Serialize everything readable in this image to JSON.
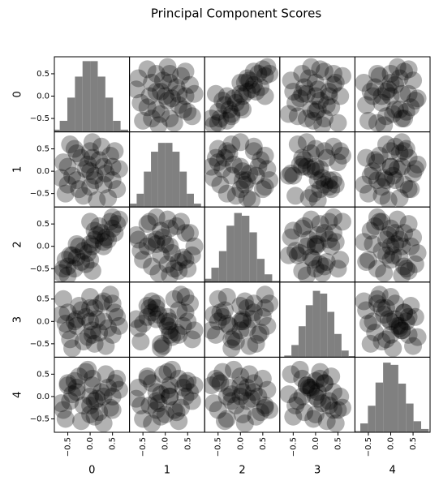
{
  "chart_data": {
    "type": "scatter_matrix",
    "title": "Principal Component Scores",
    "variables": [
      "0",
      "1",
      "2",
      "3",
      "4"
    ],
    "lim": [
      -0.8,
      0.88
    ],
    "ticks": [
      {
        "value": -0.5,
        "label": "−0.5"
      },
      {
        "value": 0,
        "label": "0.0"
      },
      0.5
    ],
    "color": "#000000",
    "hist_color": "#808080",
    "hist_ylim": [
      0,
      1300
    ],
    "histograms": [
      {
        "bins": [
          -0.85,
          -0.68,
          -0.51,
          -0.34,
          -0.17,
          0,
          0.17,
          0.34,
          0.51,
          0.68,
          0.85
        ],
        "counts": [
          40,
          200,
          620,
          1000,
          1280,
          1280,
          1000,
          620,
          200,
          40
        ]
      },
      {
        "bins": [
          -0.8,
          -0.64,
          -0.48,
          -0.32,
          -0.16,
          0,
          0.16,
          0.32,
          0.48,
          0.64,
          0.8
        ],
        "counts": [
          60,
          240,
          640,
          1000,
          1160,
          1160,
          1000,
          640,
          240,
          60
        ]
      },
      {
        "bins": [
          -0.82,
          -0.65,
          -0.48,
          -0.31,
          -0.14,
          0.03,
          0.2,
          0.37,
          0.54,
          0.71,
          0.88
        ],
        "counts": [
          60,
          260,
          560,
          1020,
          1250,
          1200,
          900,
          420,
          140,
          20
        ]
      },
      {
        "bins": [
          -0.7,
          -0.54,
          -0.38,
          -0.22,
          -0.06,
          0.1,
          0.26,
          0.42,
          0.58,
          0.74,
          0.9
        ],
        "counts": [
          30,
          220,
          560,
          940,
          1200,
          1150,
          820,
          420,
          120,
          20
        ]
      },
      {
        "bins": [
          -0.85,
          -0.68,
          -0.51,
          -0.34,
          -0.17,
          0,
          0.17,
          0.34,
          0.51,
          0.68,
          0.85
        ],
        "counts": [
          20,
          160,
          480,
          900,
          1260,
          1220,
          880,
          520,
          200,
          60
        ]
      }
    ],
    "samples": [
      [
        0.1,
        -0.2,
        0.15,
        0.3,
        -0.1
      ],
      [
        -0.3,
        0.4,
        -0.25,
        -0.1,
        0.2
      ],
      [
        0.5,
        0.1,
        0.4,
        -0.3,
        0.0
      ],
      [
        -0.5,
        -0.3,
        -0.45,
        0.2,
        0.3
      ],
      [
        0.0,
        0.0,
        0.05,
        0.0,
        -0.4
      ],
      [
        0.25,
        0.55,
        0.3,
        0.4,
        0.1
      ],
      [
        -0.15,
        -0.55,
        -0.1,
        -0.45,
        -0.2
      ],
      [
        0.6,
        -0.4,
        0.5,
        0.1,
        0.4
      ],
      [
        -0.6,
        0.2,
        -0.5,
        0.5,
        -0.3
      ],
      [
        0.35,
        -0.05,
        0.2,
        -0.55,
        0.5
      ],
      [
        -0.2,
        0.3,
        -0.35,
        0.25,
        -0.55
      ],
      [
        0.05,
        0.65,
        0.0,
        -0.2,
        0.25
      ],
      [
        0.15,
        -0.65,
        0.25,
        0.05,
        -0.05
      ],
      [
        -0.4,
        -0.1,
        -0.2,
        -0.6,
        0.05
      ],
      [
        0.45,
        0.35,
        0.55,
        0.6,
        -0.25
      ],
      [
        -0.05,
        0.15,
        -0.15,
        -0.35,
        0.6
      ],
      [
        0.3,
        -0.3,
        0.1,
        0.45,
        -0.6
      ],
      [
        -0.35,
        0.5,
        -0.5,
        0.0,
        0.35
      ],
      [
        0.65,
        0.05,
        0.6,
        -0.1,
        0.15
      ],
      [
        -0.65,
        -0.15,
        -0.6,
        0.15,
        -0.15
      ],
      [
        0.2,
        0.25,
        0.45,
        -0.25,
        -0.35
      ],
      [
        -0.25,
        -0.4,
        0.0,
        0.35,
        0.45
      ],
      [
        0.0,
        0.45,
        -0.3,
        0.55,
        0.0
      ],
      [
        0.1,
        -0.1,
        0.35,
        -0.5,
        -0.45
      ],
      [
        -0.1,
        0.05,
        -0.4,
        0.1,
        0.55
      ],
      [
        0.4,
        -0.6,
        0.15,
        -0.15,
        0.2
      ],
      [
        -0.45,
        0.6,
        -0.2,
        -0.4,
        -0.1
      ],
      [
        0.55,
        0.45,
        0.3,
        0.2,
        0.3
      ],
      [
        -0.55,
        -0.5,
        -0.3,
        -0.05,
        -0.5
      ],
      [
        0.3,
        0.1,
        0.0,
        0.0,
        0.0
      ],
      [
        -0.3,
        -0.2,
        0.05,
        0.05,
        0.1
      ],
      [
        0.0,
        -0.35,
        0.55,
        0.3,
        -0.2
      ],
      [
        0.05,
        0.3,
        -0.55,
        -0.3,
        0.4
      ],
      [
        0.5,
        -0.2,
        0.65,
        0.4,
        -0.3
      ],
      [
        -0.5,
        0.1,
        -0.65,
        -0.2,
        0.25
      ]
    ]
  }
}
